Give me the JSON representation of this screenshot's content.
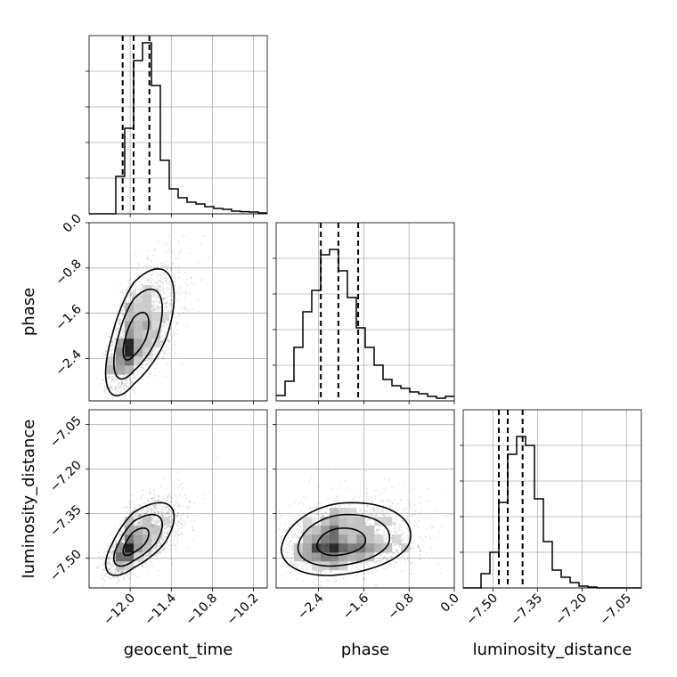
{
  "chart_data": {
    "type": "corner",
    "parameters": [
      "geocent_time",
      "phase",
      "luminosity_distance"
    ],
    "ranges": {
      "geocent_time": [
        -12.6,
        -10.0
      ],
      "phase": [
        -3.15,
        0.0
      ],
      "luminosity_distance": [
        -7.6,
        -7.0
      ]
    },
    "ticks": {
      "geocent_time": [
        -12.0,
        -11.4,
        -10.8,
        -10.2
      ],
      "phase": [
        -2.4,
        -1.6,
        -0.8,
        0.0
      ],
      "luminosity_distance": [
        -7.5,
        -7.35,
        -7.2,
        -7.05
      ]
    },
    "tick_labels": {
      "geocent_time": [
        "−12.0",
        "−11.4",
        "−10.8",
        "−10.2"
      ],
      "phase": [
        "−2.4",
        "−1.6",
        "−0.8",
        "0.0"
      ],
      "luminosity_distance": [
        "−7.50",
        "−7.35",
        "−7.20",
        "−7.05"
      ]
    },
    "row_tick_labels": {
      "phase": [
        "0.0",
        "−0.8",
        "−1.6",
        "−2.4"
      ],
      "luminosity_distance": [
        "−7.05",
        "−7.20",
        "−7.35",
        "−7.50"
      ]
    },
    "quantiles": {
      "geocent_time": [
        -12.11,
        -11.95,
        -11.72
      ],
      "phase": [
        -2.36,
        -2.05,
        -1.7
      ],
      "luminosity_distance": [
        -7.48,
        -7.45,
        -7.4
      ]
    },
    "histograms": {
      "geocent_time": [
        0.0,
        0.0,
        0.0,
        0.21,
        0.48,
        0.86,
        0.96,
        0.72,
        0.3,
        0.14,
        0.09,
        0.065,
        0.055,
        0.04,
        0.03,
        0.025,
        0.015,
        0.012,
        0.01,
        0.005
      ],
      "phase": [
        0.03,
        0.11,
        0.3,
        0.5,
        0.62,
        0.82,
        0.85,
        0.73,
        0.58,
        0.41,
        0.3,
        0.2,
        0.12,
        0.085,
        0.07,
        0.05,
        0.04,
        0.025,
        0.015,
        0.025
      ],
      "luminosity_distance": [
        0.0,
        0.0,
        0.08,
        0.2,
        0.48,
        0.75,
        0.85,
        0.8,
        0.5,
        0.26,
        0.1,
        0.06,
        0.03,
        0.01,
        0.005,
        0.0,
        0.0,
        0.0,
        0.0,
        0.0
      ]
    },
    "grid": true,
    "legend": "none"
  }
}
